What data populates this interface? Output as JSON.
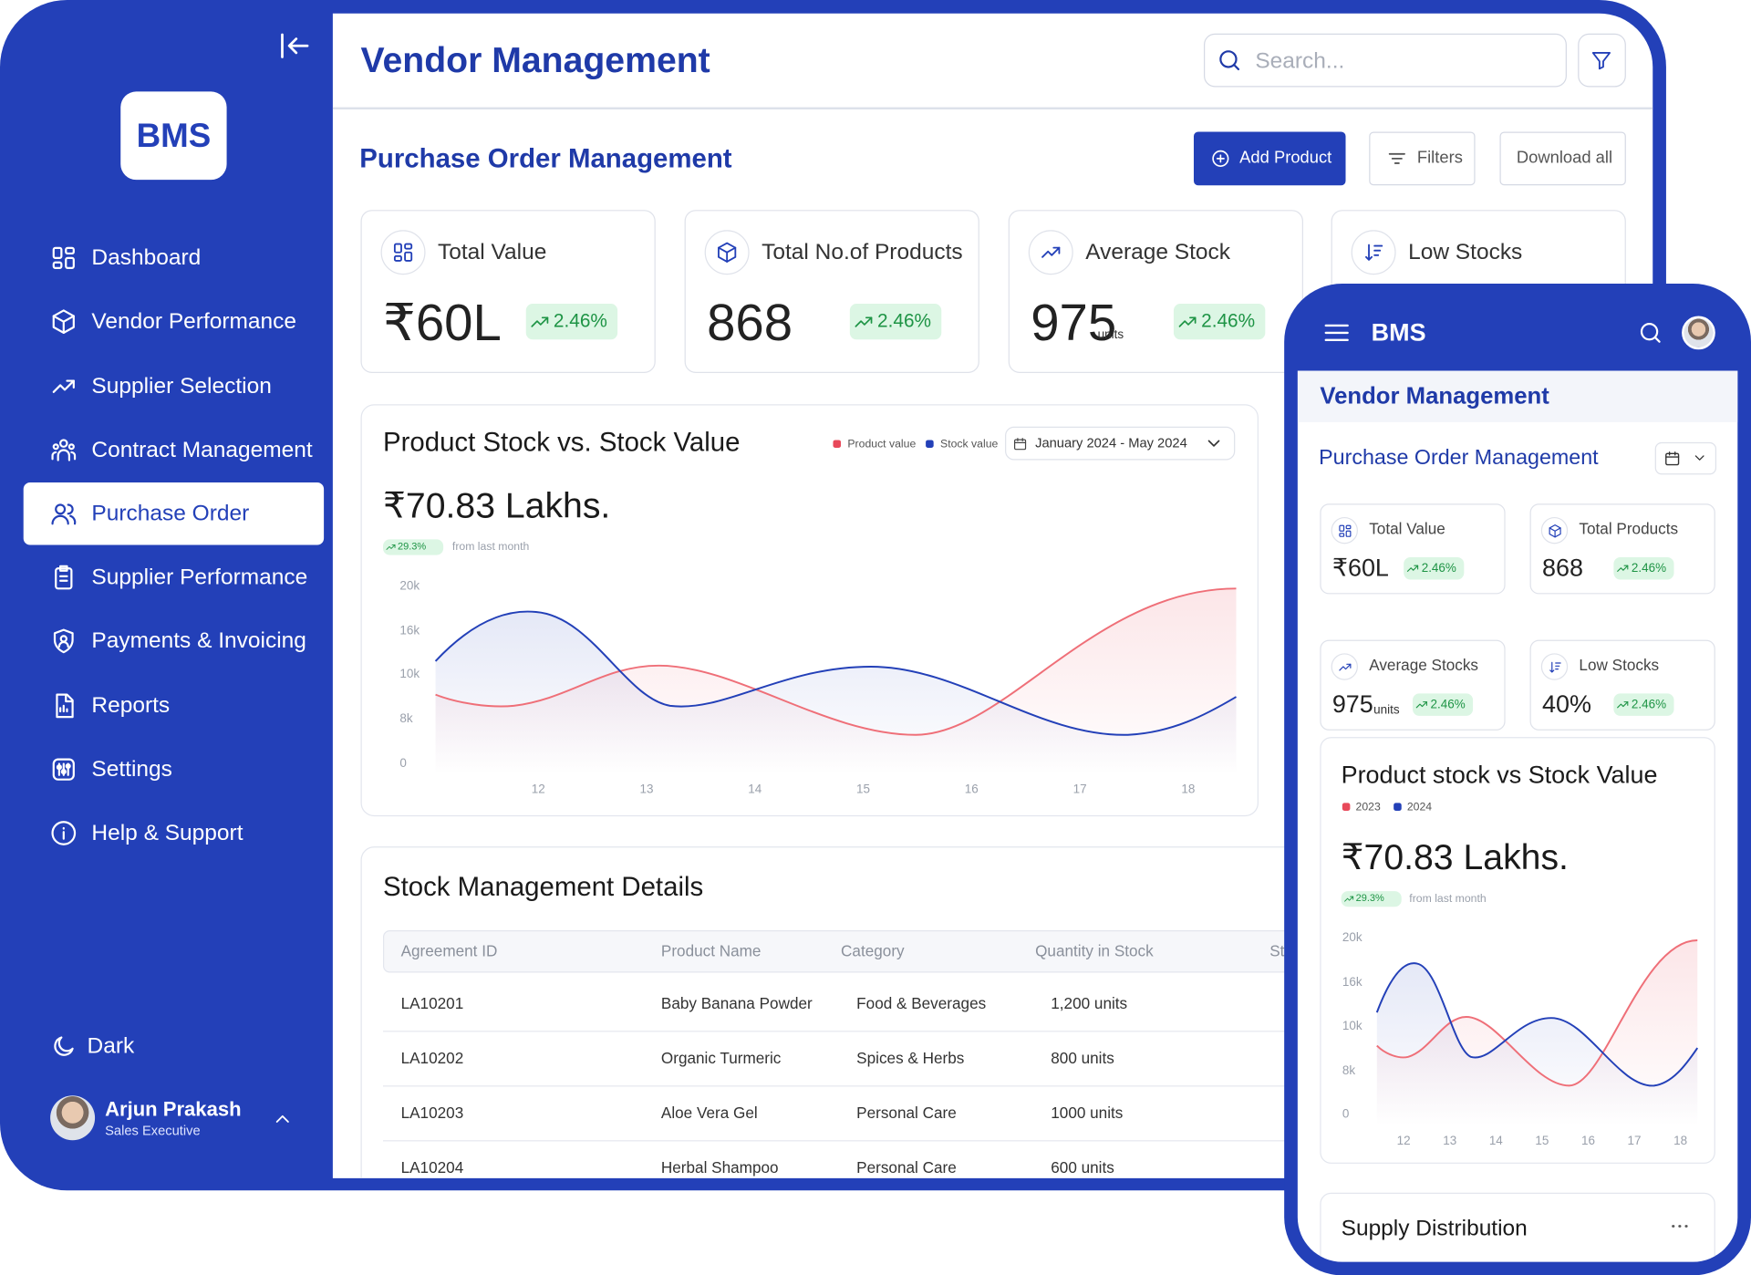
{
  "sidebar": {
    "logo": "BMS",
    "nav": [
      "Dashboard",
      "Vendor Performance",
      "Supplier Selection",
      "Contract Management",
      "Purchase Order",
      "Supplier Performance",
      "Payments & Invoicing",
      "Reports",
      "Settings",
      "Help & Support"
    ],
    "theme": "Dark",
    "user": {
      "name": "Arjun Prakash",
      "role": "Sales Executive"
    }
  },
  "header": {
    "title": "Vendor Management",
    "search_placeholder": "Search..."
  },
  "section": {
    "title": "Purchase Order Management",
    "buttons": [
      "Add Product",
      "Filters",
      "Download all"
    ]
  },
  "stats": [
    {
      "label": "Total Value",
      "value": "₹60L",
      "change": "2.46%"
    },
    {
      "label": "Total No.of Products",
      "value": "868",
      "change": "2.46%"
    },
    {
      "label": "Average Stock",
      "value": "975",
      "unit": "units",
      "change": "2.46%"
    },
    {
      "label": "Low Stocks"
    }
  ],
  "stock_chart": {
    "title": "Product Stock vs. Stock Value",
    "legend": [
      "Product value",
      "Stock value"
    ],
    "date_range": "January 2024 - May 2024",
    "total": "₹70.83 Lakhs.",
    "change": "29.3%",
    "change_note": "from last month",
    "y_labels": [
      "20k",
      "16k",
      "10k",
      "8k",
      "0"
    ],
    "x_labels": [
      "12",
      "13",
      "14",
      "15",
      "16",
      "17",
      "18"
    ]
  },
  "table": {
    "title": "Stock Management Details",
    "columns": [
      "Agreement ID",
      "Product Name",
      "Category",
      "Quantity in Stock",
      "St"
    ],
    "rows": [
      [
        "LA10201",
        "Baby Banana Powder",
        "Food & Beverages",
        "1,200 units"
      ],
      [
        "LA10202",
        "Organic Turmeric",
        "Spices & Herbs",
        "800 units"
      ],
      [
        "LA10203",
        "Aloe Vera Gel",
        "Personal Care",
        "1000 units"
      ],
      [
        "LA10204",
        "Herbal Shampoo",
        "Personal Care",
        "600 units"
      ]
    ]
  },
  "mobile": {
    "brand": "BMS",
    "title": "Vendor Management",
    "section": "Purchase Order Management",
    "stats": [
      {
        "label": "Total Value",
        "value": "₹60L",
        "change": "2.46%"
      },
      {
        "label": "Total Products",
        "value": "868",
        "change": "2.46%"
      },
      {
        "label": "Average Stocks",
        "value": "975",
        "unit": "units",
        "change": "2.46%"
      },
      {
        "label": "Low Stocks",
        "value": "40%",
        "change": "2.46%"
      }
    ],
    "chart": {
      "title": "Product stock vs Stock Value",
      "legend": [
        "2023",
        "2024"
      ],
      "total": "₹70.83 Lakhs.",
      "change": "29.3%",
      "change_note": "from last month",
      "y_labels": [
        "20k",
        "16k",
        "10k",
        "8k",
        "0"
      ],
      "x_labels": [
        "12",
        "13",
        "14",
        "15",
        "16",
        "17",
        "18"
      ]
    },
    "next_card": "Supply Distribution"
  }
}
